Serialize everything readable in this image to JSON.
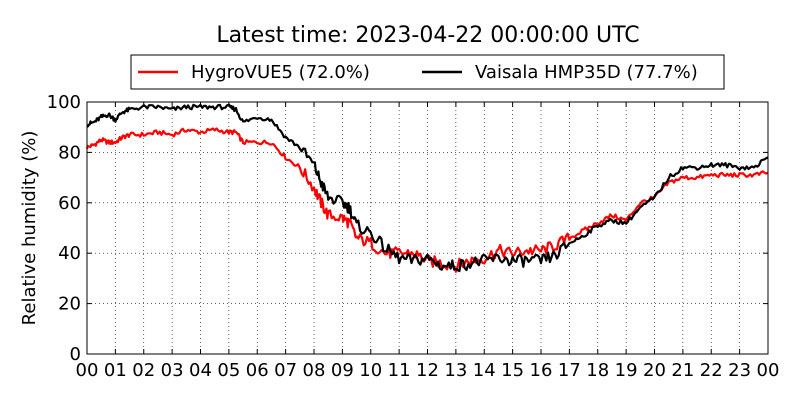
{
  "chart_data": {
    "type": "line",
    "title": "Latest time: 2023-04-22 00:00:00 UTC",
    "xlabel": "",
    "ylabel": "Relative humidity (%)",
    "ylim": [
      0,
      100
    ],
    "xlim": [
      0,
      24
    ],
    "grid": true,
    "legend_position": "top-center",
    "x_tick_labels": [
      "00",
      "01",
      "02",
      "03",
      "04",
      "05",
      "06",
      "07",
      "08",
      "09",
      "10",
      "11",
      "12",
      "13",
      "14",
      "15",
      "16",
      "17",
      "18",
      "19",
      "20",
      "21",
      "22",
      "23",
      "00"
    ],
    "y_ticks": [
      0,
      20,
      40,
      60,
      80,
      100
    ],
    "series": [
      {
        "name": "HygroVUE5 (72.0%)",
        "color": "#ff0000",
        "x": [
          0,
          0.25,
          0.5,
          0.75,
          1,
          1.25,
          1.5,
          2,
          2.5,
          3,
          3.5,
          4,
          4.5,
          5,
          5.25,
          5.5,
          6,
          6.5,
          7,
          7.5,
          8,
          8.25,
          8.5,
          9,
          9.25,
          9.5,
          10,
          10.5,
          11,
          11.5,
          12,
          12.5,
          13,
          13.5,
          14,
          14.5,
          15,
          15.5,
          16,
          16.5,
          17,
          17.5,
          18,
          18.5,
          19,
          19.5,
          20,
          20.5,
          21,
          21.5,
          22,
          22.5,
          23,
          23.5,
          24
        ],
        "values": [
          82,
          83,
          85,
          84,
          84,
          86,
          87,
          87,
          88,
          87,
          89,
          88,
          89,
          88,
          88,
          84,
          84,
          84,
          78,
          74,
          66,
          60,
          55,
          54,
          52,
          46,
          44,
          40,
          40,
          40,
          37,
          36,
          35,
          37,
          38,
          41,
          40,
          41,
          41,
          43,
          46,
          49,
          52,
          55,
          53,
          60,
          62,
          68,
          70,
          70,
          71,
          71,
          71,
          71,
          72
        ]
      },
      {
        "name": "Vaisala HMP35D (77.7%)",
        "color": "#000000",
        "x": [
          0,
          0.25,
          0.5,
          0.75,
          1,
          1.25,
          1.5,
          2,
          2.5,
          3,
          3.5,
          4,
          4.5,
          5,
          5.25,
          5.5,
          6,
          6.5,
          7,
          7.5,
          8,
          8.25,
          8.5,
          9,
          9.25,
          9.5,
          10,
          10.5,
          11,
          11.5,
          12,
          12.5,
          13,
          13.5,
          14,
          14.5,
          15,
          15.5,
          16,
          16.5,
          17,
          17.5,
          18,
          18.5,
          19,
          19.5,
          20,
          20.5,
          21,
          21.5,
          22,
          22.5,
          23,
          23.5,
          24
        ],
        "values": [
          91,
          92,
          94,
          95,
          93,
          96,
          97,
          98,
          98,
          97,
          98,
          98,
          98,
          98,
          97,
          92,
          94,
          93,
          86,
          82,
          75,
          68,
          62,
          60,
          58,
          51,
          48,
          42,
          38,
          37,
          38,
          35,
          35,
          36,
          37,
          38,
          37,
          37,
          37,
          39,
          44,
          47,
          51,
          53,
          52,
          58,
          62,
          70,
          74,
          74,
          75,
          75,
          74,
          74,
          78
        ]
      }
    ]
  }
}
